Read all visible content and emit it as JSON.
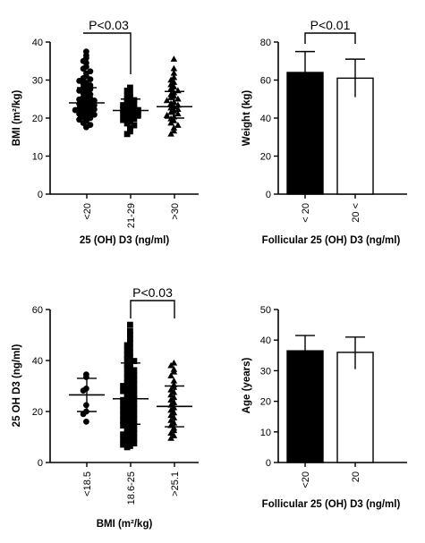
{
  "chart_data": [
    {
      "type": "scatter",
      "panel": "top-left",
      "xlabel": "25 (OH) D3 (ng/ml)",
      "ylabel": "BMI (m²/kg)",
      "ylim": [
        0,
        40
      ],
      "yticks": [
        0,
        10,
        20,
        30,
        40
      ],
      "categories": [
        "<20",
        "21-29",
        ">30"
      ],
      "markers": [
        "circle",
        "square",
        "triangle"
      ],
      "annotation": {
        "text": "P<0.03",
        "between": [
          0,
          1
        ]
      },
      "series": [
        {
          "category": "<20",
          "mean": 24,
          "sd_low": 21,
          "sd_high": 28,
          "values": [
            37.5,
            36.5,
            35.8,
            35.0,
            34.5,
            33.5,
            33.0,
            32.3,
            31.8,
            31.0,
            30.5,
            30.2,
            29.8,
            29.3,
            29.0,
            28.6,
            28.3,
            28.0,
            27.6,
            27.2,
            26.8,
            26.5,
            26.2,
            25.8,
            25.5,
            25.2,
            24.9,
            24.6,
            24.4,
            24.1,
            23.9,
            23.7,
            23.4,
            23.2,
            23.0,
            22.7,
            22.5,
            22.3,
            22.1,
            21.8,
            21.6,
            21.4,
            21.1,
            20.9,
            20.6,
            20.3,
            20.0,
            19.6,
            19.2,
            18.7,
            18.2,
            17.6
          ]
        },
        {
          "category": "21-29",
          "mean": 22,
          "sd_low": 20,
          "sd_high": 25,
          "values": [
            28.0,
            27.2,
            26.5,
            26.0,
            25.5,
            25.1,
            24.7,
            24.3,
            24.0,
            23.7,
            23.4,
            23.1,
            22.8,
            22.6,
            22.3,
            22.1,
            21.8,
            21.6,
            21.3,
            21.0,
            20.7,
            20.4,
            20.1,
            19.8,
            19.5,
            19.1,
            18.6,
            18.1,
            17.4,
            16.5,
            15.8
          ]
        },
        {
          "category": ">30",
          "mean": 23,
          "sd_low": 20,
          "sd_high": 27,
          "values": [
            35.5,
            33.0,
            31.8,
            30.7,
            30.0,
            29.4,
            28.8,
            28.2,
            27.7,
            27.2,
            26.7,
            26.2,
            25.8,
            25.4,
            25.0,
            24.6,
            24.2,
            23.8,
            23.4,
            23.0,
            22.7,
            22.3,
            21.9,
            21.5,
            21.1,
            20.7,
            20.3,
            19.8,
            19.3,
            18.7,
            18.1,
            17.4,
            16.6,
            15.8
          ]
        }
      ]
    },
    {
      "type": "bar",
      "panel": "top-right",
      "xlabel": "Follicular 25 (OH) D3 (ng/ml)",
      "ylabel": "Weight (kg)",
      "ylim": [
        0,
        80
      ],
      "yticks": [
        0,
        20,
        40,
        60,
        80
      ],
      "categories": [
        "< 20",
        "20 <"
      ],
      "values": [
        64,
        61
      ],
      "error_low": [
        53,
        51
      ],
      "error_high": [
        75,
        71
      ],
      "fills": [
        "#000000",
        "#ffffff"
      ],
      "annotation": {
        "text": "P<0.01",
        "between": [
          0,
          1
        ]
      }
    },
    {
      "type": "scatter",
      "panel": "bottom-left",
      "xlabel": "BMI (m²/kg)",
      "ylabel": "25 OH D3 (ng/ml)",
      "ylim": [
        0,
        60
      ],
      "yticks": [
        0,
        20,
        40,
        60
      ],
      "categories": [
        "<18.5",
        "18.6-25",
        ">25.1"
      ],
      "markers": [
        "circle",
        "square",
        "triangle"
      ],
      "annotation": {
        "text": "P<0.03",
        "between": [
          1,
          2
        ]
      },
      "series": [
        {
          "category": "<18.5",
          "mean": 26.5,
          "sd_low": 20,
          "sd_high": 33,
          "values": [
            34.5,
            33.5,
            29.0,
            28.2,
            22.5,
            20.0,
            19.0,
            16.0
          ]
        },
        {
          "category": "18.6-25",
          "mean": 25,
          "sd_low": 15,
          "sd_high": 39,
          "values": [
            54.0,
            51.5,
            50.0,
            48.5,
            47.2,
            46.0,
            45.0,
            44.0,
            43.0,
            42.2,
            41.4,
            40.6,
            39.8,
            39.0,
            38.3,
            37.6,
            36.9,
            36.2,
            35.5,
            34.8,
            34.2,
            33.6,
            33.0,
            32.4,
            31.8,
            31.2,
            30.6,
            30.0,
            29.5,
            29.0,
            28.5,
            28.0,
            27.5,
            27.0,
            26.5,
            26.0,
            25.5,
            25.0,
            24.5,
            24.0,
            23.5,
            23.0,
            22.5,
            22.0,
            21.5,
            21.0,
            20.5,
            20.0,
            19.5,
            19.0,
            18.5,
            18.0,
            17.5,
            17.0,
            16.5,
            16.0,
            15.5,
            15.0,
            14.5,
            14.0,
            13.5,
            13.0,
            12.5,
            12.0,
            11.5,
            11.0,
            10.5,
            10.0,
            9.5,
            9.0,
            8.5,
            8.0,
            7.5,
            7.0,
            6.5,
            6.0
          ]
        },
        {
          "category": ">25.1",
          "mean": 22,
          "sd_low": 14,
          "sd_high": 30,
          "values": [
            39.0,
            38.0,
            36.5,
            35.5,
            34.0,
            32.0,
            30.5,
            29.5,
            28.5,
            27.5,
            26.5,
            25.5,
            24.5,
            23.5,
            22.5,
            21.5,
            20.5,
            19.5,
            18.5,
            17.5,
            16.5,
            15.5,
            14.5,
            13.5,
            12.5,
            11.5,
            10.5,
            9.5
          ]
        }
      ]
    },
    {
      "type": "bar",
      "panel": "bottom-right",
      "xlabel": "Follicular 25 (OH) D3 (ng/ml)",
      "ylabel": "Age (years)",
      "ylim": [
        0,
        50
      ],
      "yticks": [
        0,
        10,
        20,
        30,
        40,
        50
      ],
      "categories": [
        "<20",
        "20"
      ],
      "values": [
        36.5,
        36
      ],
      "error_low": [
        31.5,
        30.5
      ],
      "error_high": [
        41.5,
        41
      ],
      "fills": [
        "#000000",
        "#ffffff"
      ]
    }
  ]
}
